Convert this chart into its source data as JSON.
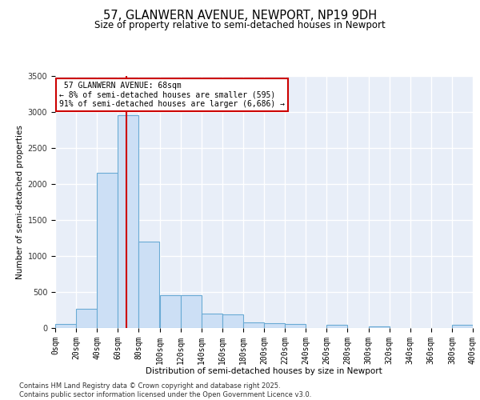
{
  "title_line1": "57, GLANWERN AVENUE, NEWPORT, NP19 9DH",
  "title_line2": "Size of property relative to semi-detached houses in Newport",
  "xlabel": "Distribution of semi-detached houses by size in Newport",
  "ylabel": "Number of semi-detached properties",
  "subject_address": "57 GLANWERN AVENUE: 68sqm",
  "subject_size": 68,
  "pct_smaller": 8,
  "count_smaller": 595,
  "pct_larger": 91,
  "count_larger": 6686,
  "footer_line1": "Contains HM Land Registry data © Crown copyright and database right 2025.",
  "footer_line2": "Contains public sector information licensed under the Open Government Licence v3.0.",
  "bar_bins": [
    0,
    20,
    40,
    60,
    80,
    100,
    120,
    140,
    160,
    180,
    200,
    220,
    240,
    260,
    280,
    300,
    320,
    340,
    360,
    380,
    400
  ],
  "bar_heights": [
    60,
    270,
    2150,
    2950,
    1200,
    460,
    460,
    200,
    185,
    80,
    65,
    60,
    0,
    45,
    0,
    25,
    0,
    0,
    0,
    50
  ],
  "bar_color": "#ccdff5",
  "bar_edge_color": "#6aaad4",
  "vline_color": "#cc0000",
  "vline_x": 68,
  "annotation_box_edge_color": "#cc0000",
  "background_color": "#e8eef8",
  "ylim": [
    0,
    3500
  ],
  "yticks": [
    0,
    500,
    1000,
    1500,
    2000,
    2500,
    3000,
    3500
  ],
  "grid_color": "#ffffff",
  "title_fontsize": 10.5,
  "subtitle_fontsize": 8.5,
  "axis_label_fontsize": 7.5,
  "tick_fontsize": 7,
  "annotation_fontsize": 7,
  "footer_fontsize": 6
}
